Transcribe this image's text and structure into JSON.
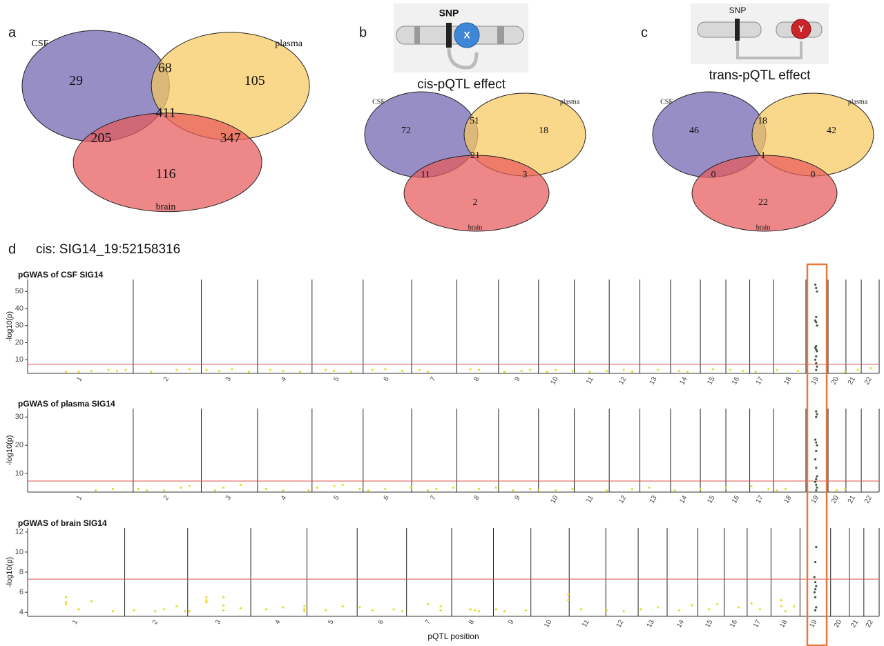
{
  "figure": {
    "d_label": "d",
    "d_title": "cis: SIG14_19:52158316",
    "highlight": "19",
    "highlight_color": "#e8793a"
  },
  "chart_data": [
    {
      "type": "venn",
      "label": "a",
      "sets": [
        "CSF",
        "plasma",
        "brain"
      ],
      "colors": [
        "#6f63b0",
        "#f8c95e",
        "#e85a5a"
      ],
      "regions": [
        {
          "sets": [
            "CSF"
          ],
          "value": 29
        },
        {
          "sets": [
            "CSF",
            "plasma"
          ],
          "value": 68
        },
        {
          "sets": [
            "plasma"
          ],
          "value": 105
        },
        {
          "sets": [
            "CSF",
            "plasma",
            "brain"
          ],
          "value": 411
        },
        {
          "sets": [
            "CSF",
            "brain"
          ],
          "value": 205
        },
        {
          "sets": [
            "plasma",
            "brain"
          ],
          "value": 347
        },
        {
          "sets": [
            "brain"
          ],
          "value": 116
        }
      ]
    },
    {
      "type": "venn",
      "label": "b",
      "subtitle": "cis-pQTL effect",
      "icon": {
        "snp": "SNP",
        "protein": "X"
      },
      "sets": [
        "CSF",
        "plasma",
        "brain"
      ],
      "colors": [
        "#6f63b0",
        "#f8c95e",
        "#e85a5a"
      ],
      "regions": [
        {
          "sets": [
            "CSF"
          ],
          "value": 72
        },
        {
          "sets": [
            "CSF",
            "plasma"
          ],
          "value": 51
        },
        {
          "sets": [
            "plasma"
          ],
          "value": 18
        },
        {
          "sets": [
            "CSF",
            "plasma",
            "brain"
          ],
          "value": 21
        },
        {
          "sets": [
            "CSF",
            "brain"
          ],
          "value": 11
        },
        {
          "sets": [
            "plasma",
            "brain"
          ],
          "value": 3
        },
        {
          "sets": [
            "brain"
          ],
          "value": 2
        }
      ]
    },
    {
      "type": "venn",
      "label": "c",
      "subtitle": "trans-pQTL effect",
      "icon": {
        "snp": "SNP",
        "protein": "Y"
      },
      "sets": [
        "CSF",
        "plasma",
        "brain"
      ],
      "colors": [
        "#6f63b0",
        "#f8c95e",
        "#e85a5a"
      ],
      "regions": [
        {
          "sets": [
            "CSF"
          ],
          "value": 46
        },
        {
          "sets": [
            "CSF",
            "plasma"
          ],
          "value": 18
        },
        {
          "sets": [
            "plasma"
          ],
          "value": 42
        },
        {
          "sets": [
            "CSF",
            "plasma",
            "brain"
          ],
          "value": 1
        },
        {
          "sets": [
            "CSF",
            "brain"
          ],
          "value": 0
        },
        {
          "sets": [
            "plasma",
            "brain"
          ],
          "value": 0
        },
        {
          "sets": [
            "brain"
          ],
          "value": 22
        }
      ]
    },
    {
      "type": "manhattan",
      "title": "pGWAS of CSF SIG14",
      "ylabel": "-log10(p)",
      "categories": [
        "1",
        "2",
        "3",
        "4",
        "5",
        "6",
        "7",
        "8",
        "9",
        "10",
        "11",
        "12",
        "13",
        "14",
        "15",
        "16",
        "17",
        "18",
        "19",
        "20",
        "21",
        "22"
      ],
      "xlim": [
        0,
        100
      ],
      "xticks": [
        0,
        12.4,
        20.4,
        27,
        33.4,
        39.4,
        45.1,
        50.4,
        55.3,
        60,
        64.2,
        68.3,
        71.9,
        75.5,
        79,
        82,
        84.8,
        87.6,
        91.4,
        94,
        96.1,
        97.9,
        100
      ],
      "ylim": [
        2,
        57
      ],
      "yticks": [
        10,
        20,
        30,
        40,
        50
      ],
      "hline": 7.3,
      "hline_color": "#d9534f",
      "series": [
        {
          "color": "#e6da2c",
          "x": [
            4.5,
            6,
            7.5,
            9.5,
            10.5,
            11.5,
            14.5,
            17.5,
            19,
            21,
            22.5,
            24,
            26,
            28.5,
            30,
            32,
            35,
            36,
            38,
            40.5,
            42,
            44,
            46,
            47,
            52,
            53,
            56,
            58,
            59,
            61,
            62,
            64,
            66,
            68,
            70,
            71,
            74,
            76.5,
            77.5,
            80.5,
            82.5,
            84,
            85.5,
            88,
            90.5,
            96,
            97.5,
            99
          ],
          "values": [
            3,
            3,
            3.5,
            4,
            3.5,
            4,
            3,
            4,
            4.5,
            4,
            3.5,
            4.5,
            3,
            4,
            3.5,
            3,
            4,
            3.5,
            3,
            4,
            4.5,
            3.5,
            4,
            3,
            4.5,
            4,
            3,
            3.5,
            4,
            3,
            4,
            3.5,
            3,
            3.5,
            4,
            3,
            4,
            3.5,
            3,
            4.5,
            4,
            3.5,
            3,
            4,
            3.5,
            3,
            4,
            5
          ]
        },
        {
          "color": "#3c5a3c",
          "x": [
            92.6,
            92.7,
            92.6,
            92.5,
            92.6,
            92.7,
            92.6,
            92.5,
            92.6,
            92.7,
            92.6,
            92.5,
            92.6,
            92.7,
            92.6,
            92.5
          ],
          "values": [
            4,
            6,
            8,
            10,
            12,
            15,
            16,
            17,
            18,
            30,
            32,
            33,
            35,
            50,
            52,
            54
          ]
        }
      ]
    },
    {
      "type": "manhattan",
      "title": "pGWAS of plasma SIG14",
      "ylabel": "-log10(p)",
      "categories": [
        "1",
        "2",
        "3",
        "4",
        "5",
        "6",
        "7",
        "8",
        "9",
        "10",
        "11",
        "12",
        "13",
        "14",
        "15",
        "16",
        "17",
        "18",
        "19",
        "20",
        "21",
        "22"
      ],
      "xlim": [
        0,
        100
      ],
      "xticks": [
        0,
        12.4,
        20.4,
        27,
        33.4,
        39.4,
        45.1,
        50.4,
        55.3,
        60,
        64.2,
        68.3,
        71.9,
        75.5,
        79,
        82,
        84.8,
        87.6,
        91.4,
        94,
        96.1,
        97.9,
        100
      ],
      "ylim": [
        3.4,
        33
      ],
      "yticks": [
        10,
        20,
        30
      ],
      "hline": 7.3,
      "hline_color": "#d9534f",
      "series": [
        {
          "color": "#e6da2c",
          "x": [
            8,
            10,
            13,
            14,
            16,
            18,
            19,
            22,
            23,
            25,
            28,
            30,
            33,
            34,
            36,
            37,
            39,
            40,
            42,
            45,
            47,
            48,
            50,
            53,
            55,
            57,
            59,
            60,
            62,
            64,
            68,
            71,
            73,
            76,
            79,
            82,
            85,
            87,
            88,
            89,
            95,
            96
          ],
          "values": [
            4,
            4.5,
            4.5,
            4,
            4,
            5,
            5.5,
            4,
            5,
            6,
            4.5,
            4,
            4,
            5,
            5.5,
            6,
            4.5,
            4,
            4.5,
            5,
            4,
            4.5,
            5,
            4.5,
            5,
            4,
            4.5,
            4,
            4,
            4.5,
            4,
            4.5,
            5,
            4,
            4.5,
            5,
            5.5,
            4.5,
            4,
            4.5,
            4,
            4.5
          ]
        },
        {
          "color": "#3c5a3c",
          "x": [
            92.6,
            92.7,
            92.6,
            92.5,
            92.6,
            92.7,
            92.6,
            92.5,
            92.6,
            92.7,
            92.6,
            92.5,
            92.6,
            92.7,
            92.6
          ],
          "values": [
            4,
            5,
            6,
            7,
            8,
            9,
            12,
            15,
            18,
            20,
            21,
            22,
            30,
            31,
            32
          ]
        }
      ]
    },
    {
      "type": "manhattan",
      "title": "pGWAS of brain SIG14",
      "ylabel": "-log10(p)",
      "xlabel": "pQTL position",
      "categories": [
        "1",
        "2",
        "3",
        "4",
        "5",
        "6",
        "7",
        "8",
        "9",
        "10",
        "11",
        "12",
        "13",
        "14",
        "15",
        "16",
        "17",
        "18",
        "19",
        "20",
        "21",
        "22"
      ],
      "xlim": [
        0,
        100
      ],
      "xticks": [
        0,
        11.4,
        18.8,
        26.2,
        32.8,
        38.7,
        44.5,
        49.8,
        54.7,
        59.1,
        63.6,
        67.9,
        71.7,
        75.1,
        78.7,
        81.8,
        84.5,
        87.3,
        90.7,
        94.3,
        96.5,
        98.2,
        100
      ],
      "ylim": [
        3.6,
        12.4
      ],
      "yticks": [
        4,
        6,
        8,
        10,
        12
      ],
      "hline": 7.3,
      "hline_color": "#d9534f",
      "series": [
        {
          "color": "#e6da2c",
          "x": [
            4.5,
            4.5,
            4.5,
            6,
            7.5,
            10,
            12.5,
            15,
            16,
            17.5,
            18.5,
            19,
            21,
            21,
            21,
            23,
            23,
            23,
            25,
            28,
            30,
            32.5,
            32.5,
            32.5,
            35,
            37,
            39,
            40.5,
            43,
            44,
            47,
            48.5,
            48.5,
            52,
            52.5,
            53,
            55,
            56,
            58.5,
            63.5,
            63.5,
            65,
            68,
            70,
            72,
            74,
            76.5,
            78,
            80,
            81,
            83.5,
            85,
            86,
            88.5,
            88.5,
            89,
            90
          ],
          "values": [
            5.5,
            5,
            4.8,
            4.3,
            5.1,
            4.1,
            4.2,
            4.1,
            4.3,
            4.6,
            4.1,
            4.1,
            5.5,
            5,
            5.2,
            5.5,
            4.7,
            4.2,
            4.4,
            4.3,
            4.5,
            4.6,
            4.3,
            4.1,
            4.2,
            4.6,
            4.5,
            4.2,
            4.3,
            4.1,
            4.8,
            4.6,
            4.2,
            4.3,
            4.2,
            4.1,
            4.3,
            4.1,
            4.2,
            5.8,
            5.2,
            4.3,
            4.2,
            4.1,
            4.3,
            4.5,
            4.2,
            4.7,
            4.3,
            4.8,
            4.5,
            4.9,
            4.3,
            5.2,
            4.6,
            4.1,
            4.6
          ]
        },
        {
          "color": "#3c5a3c",
          "x": [
            92.5,
            92.6,
            92.5,
            92.4,
            92.5,
            92.6,
            92.5,
            92.4,
            92.5,
            92.6
          ],
          "values": [
            4.2,
            4.5,
            5.5,
            6,
            6.3,
            6.6,
            7,
            7.5,
            9,
            10.5
          ]
        }
      ]
    }
  ]
}
